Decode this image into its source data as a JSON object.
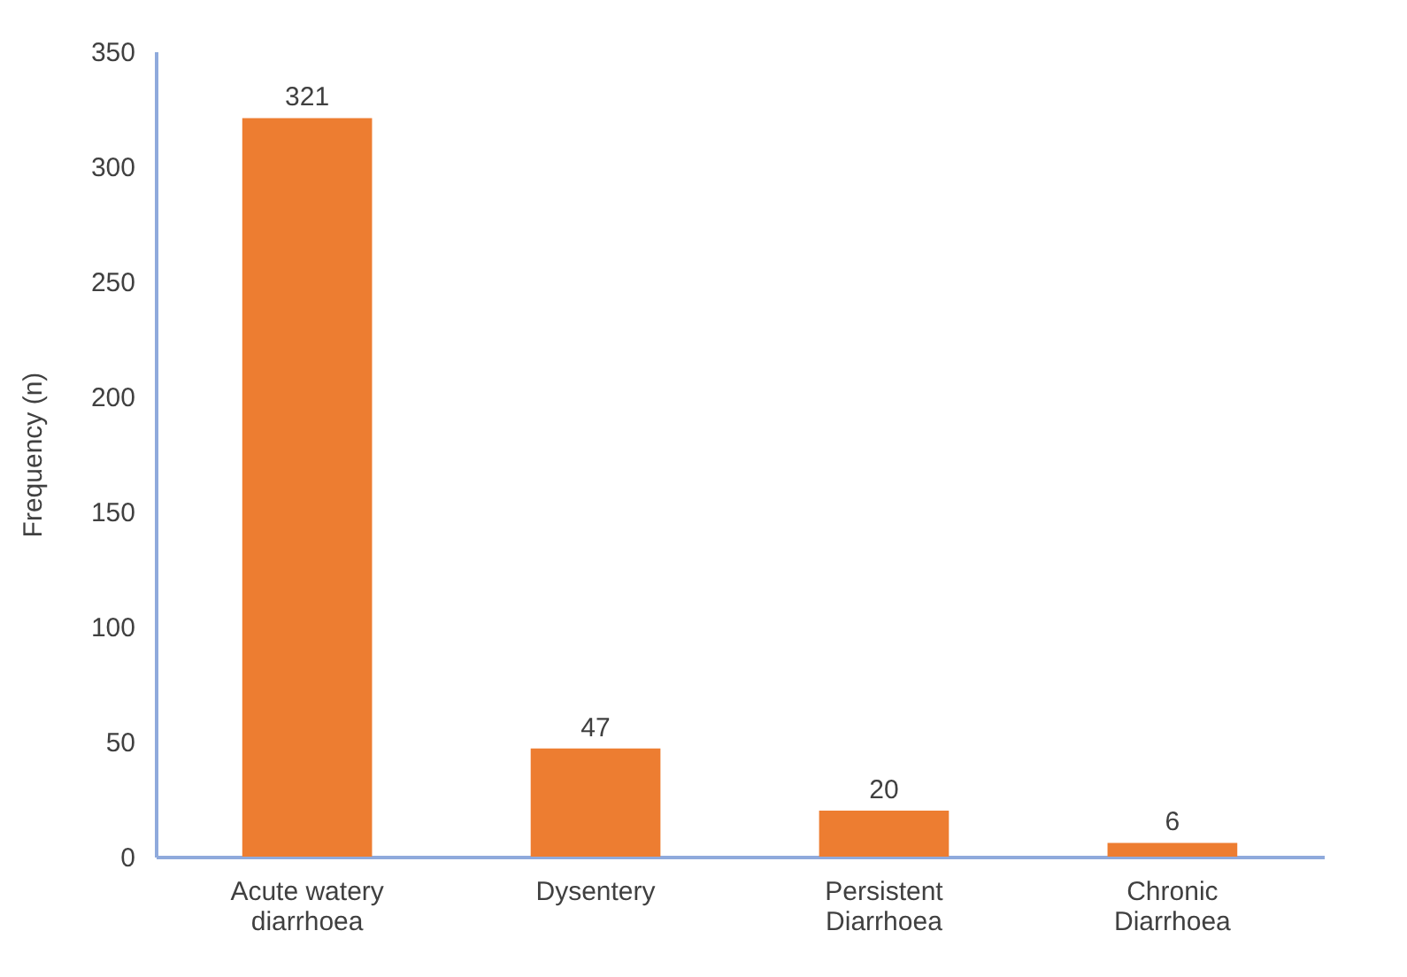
{
  "chart_data": {
    "type": "bar",
    "ylabel": "Frequency (n)",
    "categories": [
      "Acute watery diarrhoea",
      "Dysentery",
      "Persistent Diarrhoea",
      "Chronic Diarrhoea"
    ],
    "values": [
      321,
      47,
      20,
      6
    ],
    "color": "#ed7d31",
    "ylim": [
      0,
      350
    ],
    "yticks": [
      0,
      50,
      100,
      150,
      200,
      250,
      300,
      350
    ],
    "grid": false,
    "data_labels": true
  }
}
